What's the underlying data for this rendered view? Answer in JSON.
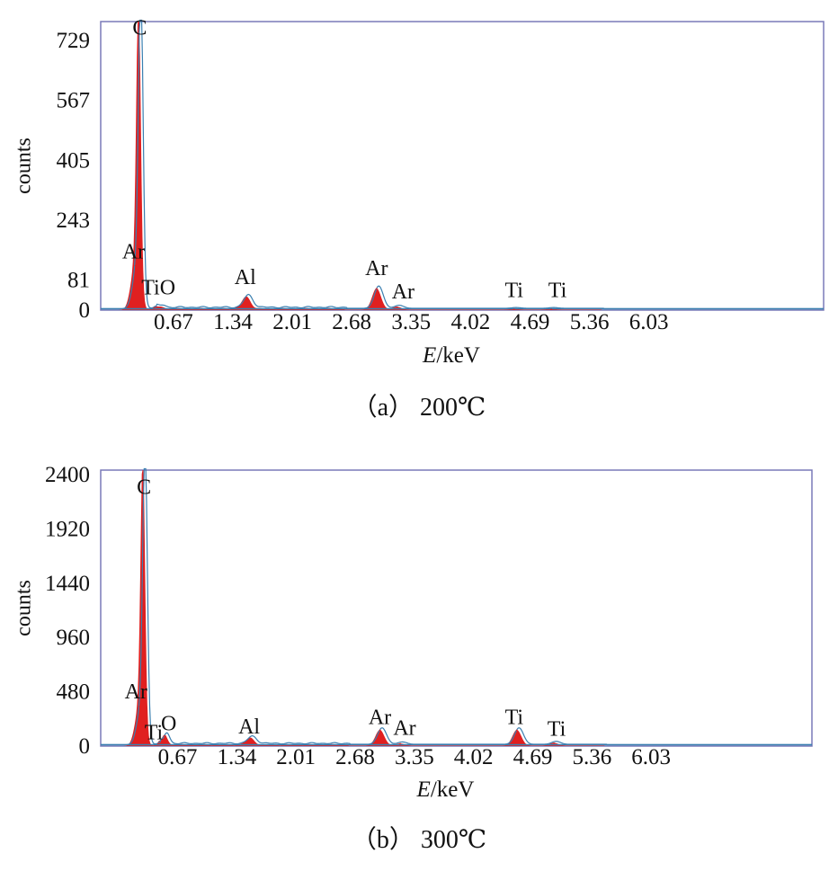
{
  "chart_data": [
    {
      "type": "area",
      "caption": "（a） 200℃",
      "xlabel_italic": "E",
      "xlabel_unit": "/keV",
      "ylabel": "counts",
      "xticks": [
        "0.67",
        "1.34",
        "2.01",
        "2.68",
        "3.35",
        "4.02",
        "4.69",
        "5.36",
        "6.03"
      ],
      "xtick_values": [
        0.67,
        1.34,
        2.01,
        2.68,
        3.35,
        4.02,
        4.69,
        5.36,
        6.03
      ],
      "yticks": [
        "0",
        "81",
        "243",
        "405",
        "567",
        "729"
      ],
      "ytick_values": [
        0,
        81,
        243,
        405,
        567,
        729
      ],
      "xlim": [
        -0.15,
        8.0
      ],
      "ylim": [
        0,
        780
      ],
      "grid": false,
      "peak_color": "#e02020",
      "line_color": "#3a7fb0",
      "frame_color": "#7a7ab8",
      "background_level": 4,
      "peaks": [
        {
          "label": "C",
          "energy": 0.277,
          "counts": 775,
          "width": 0.025
        },
        {
          "label": "Ar",
          "energy": 0.24,
          "counts": 120,
          "width": 0.05
        },
        {
          "label": "Ti",
          "energy": 0.45,
          "counts": 6,
          "width": 0.03
        },
        {
          "label": "O",
          "energy": 0.53,
          "counts": 6,
          "width": 0.03
        },
        {
          "label": "Al",
          "energy": 1.49,
          "counts": 32,
          "width": 0.05
        },
        {
          "label": "Ar",
          "energy": 2.96,
          "counts": 58,
          "width": 0.05
        },
        {
          "label": "Ar",
          "energy": 3.19,
          "counts": 8,
          "width": 0.05
        },
        {
          "label": "Ti",
          "energy": 4.51,
          "counts": 2,
          "width": 0.05
        },
        {
          "label": "Ti",
          "energy": 4.93,
          "counts": 2,
          "width": 0.05
        }
      ],
      "peak_labels": [
        {
          "text": "C",
          "energy": 0.29,
          "counts": 745
        },
        {
          "text": "Ar",
          "energy": 0.22,
          "counts": 140
        },
        {
          "text": "TiO",
          "energy": 0.5,
          "counts": 42
        },
        {
          "text": "Al",
          "energy": 1.48,
          "counts": 70
        },
        {
          "text": "Ar",
          "energy": 2.96,
          "counts": 95
        },
        {
          "text": "Ar",
          "energy": 3.26,
          "counts": 32
        },
        {
          "text": "Ti",
          "energy": 4.51,
          "counts": 35
        },
        {
          "text": "Ti",
          "energy": 5.0,
          "counts": 35
        }
      ]
    },
    {
      "type": "area",
      "caption": "（b） 300℃",
      "xlabel_italic": "E",
      "xlabel_unit": "/keV",
      "ylabel": "counts",
      "xticks": [
        "0.67",
        "1.34",
        "2.01",
        "2.68",
        "3.35",
        "4.02",
        "4.69",
        "5.36",
        "6.03"
      ],
      "xtick_values": [
        0.67,
        1.34,
        2.01,
        2.68,
        3.35,
        4.02,
        4.69,
        5.36,
        6.03
      ],
      "yticks": [
        "0",
        "480",
        "960",
        "1440",
        "1920",
        "2400"
      ],
      "ytick_values": [
        0,
        480,
        960,
        1440,
        1920,
        2400
      ],
      "xlim": [
        -0.2,
        7.85
      ],
      "ylim": [
        0,
        2440
      ],
      "grid": false,
      "peak_color": "#e02020",
      "line_color": "#3a7fb0",
      "frame_color": "#7a7ab8",
      "background_level": 12,
      "peaks": [
        {
          "label": "C",
          "energy": 0.277,
          "counts": 2350,
          "width": 0.025
        },
        {
          "label": "Ar",
          "energy": 0.24,
          "counts": 350,
          "width": 0.05
        },
        {
          "label": "Ti",
          "energy": 0.45,
          "counts": 20,
          "width": 0.03
        },
        {
          "label": "O",
          "energy": 0.525,
          "counts": 90,
          "width": 0.03
        },
        {
          "label": "Al",
          "energy": 1.49,
          "counts": 60,
          "width": 0.05
        },
        {
          "label": "Ar",
          "energy": 2.96,
          "counts": 140,
          "width": 0.05
        },
        {
          "label": "Ar",
          "energy": 3.19,
          "counts": 20,
          "width": 0.05
        },
        {
          "label": "Ti",
          "energy": 4.51,
          "counts": 140,
          "width": 0.05
        },
        {
          "label": "Ti",
          "energy": 4.93,
          "counts": 25,
          "width": 0.05
        }
      ],
      "peak_labels": [
        {
          "text": "C",
          "energy": 0.29,
          "counts": 2230
        },
        {
          "text": "Ar",
          "energy": 0.2,
          "counts": 420
        },
        {
          "text": "Ti",
          "energy": 0.4,
          "counts": 60
        },
        {
          "text": "O",
          "energy": 0.57,
          "counts": 140
        },
        {
          "text": "Al",
          "energy": 1.48,
          "counts": 110
        },
        {
          "text": "Ar",
          "energy": 2.96,
          "counts": 195
        },
        {
          "text": "Ar",
          "energy": 3.24,
          "counts": 100
        },
        {
          "text": "Ti",
          "energy": 4.48,
          "counts": 195
        },
        {
          "text": "Ti",
          "energy": 4.96,
          "counts": 90
        }
      ]
    }
  ]
}
